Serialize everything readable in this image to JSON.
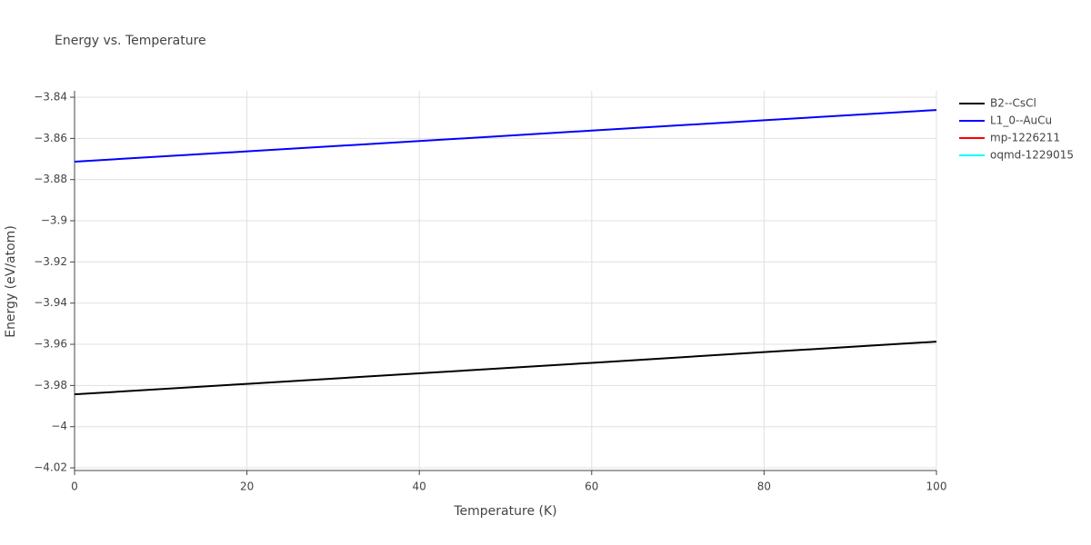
{
  "chart_data": {
    "type": "line",
    "title": "Energy vs. Temperature",
    "x_label": "Temperature (K)",
    "y_label": "Energy (eV/atom)",
    "x": [
      0,
      20,
      40,
      60,
      80,
      100
    ],
    "series": [
      {
        "name": "B2--CsCl",
        "color": "#000000",
        "values": [
          -3.9843,
          -3.9792,
          -3.9741,
          -3.969,
          -3.9638,
          -3.9587
        ]
      },
      {
        "name": "L1_0--AuCu",
        "color": "#0000ff",
        "values": [
          -3.8713,
          -3.8663,
          -3.8613,
          -3.8562,
          -3.8512,
          -3.8462
        ]
      },
      {
        "name": "mp-1226211",
        "color": "#ff0000",
        "values": [
          null,
          null,
          null,
          null,
          null,
          null
        ]
      },
      {
        "name": "oqmd-1229015",
        "color": "#00ffff",
        "values": [
          null,
          null,
          null,
          null,
          null,
          null
        ]
      }
    ],
    "xlim": [
      0,
      100
    ],
    "xticks": [
      0,
      20,
      40,
      60,
      80,
      100
    ],
    "ylim": [
      -4.0213,
      -3.8369
    ],
    "yticks": [
      {
        "value": -3.84,
        "label": "−3.84"
      },
      {
        "value": -3.86,
        "label": "−3.86"
      },
      {
        "value": -3.88,
        "label": "−3.88"
      },
      {
        "value": -3.9,
        "label": "−3.9"
      },
      {
        "value": -3.92,
        "label": "−3.92"
      },
      {
        "value": -3.94,
        "label": "−3.94"
      },
      {
        "value": -3.96,
        "label": "−3.96"
      },
      {
        "value": -3.98,
        "label": "−3.98"
      },
      {
        "value": -4,
        "label": "−4"
      },
      {
        "value": -4.02,
        "label": "−4.02"
      }
    ],
    "grid": true,
    "legend": "right"
  }
}
